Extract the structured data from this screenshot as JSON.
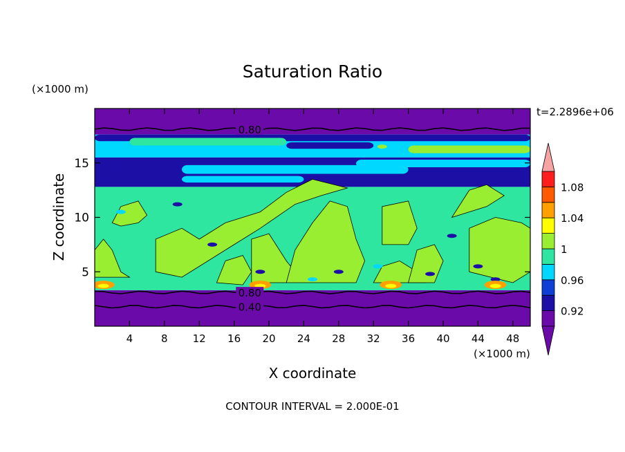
{
  "chart_data": {
    "type": "heatmap",
    "title": "Saturation Ratio",
    "xlabel": "X coordinate",
    "ylabel": "Z coordinate",
    "x_unit_label": "(×1000 m)",
    "y_unit_label": "(×1000 m)",
    "time_label": "t=2.2896e+06",
    "footer": "CONTOUR INTERVAL = 2.000E-01",
    "xlim": [
      0,
      50
    ],
    "ylim": [
      0,
      20
    ],
    "x_ticks": [
      4,
      8,
      12,
      16,
      20,
      24,
      28,
      32,
      36,
      40,
      44,
      48
    ],
    "y_ticks": [
      5,
      10,
      15
    ],
    "colorbar": {
      "levels": [
        0.9,
        0.92,
        0.94,
        0.96,
        0.98,
        1.0,
        1.02,
        1.04,
        1.06,
        1.08,
        1.1
      ],
      "tick_labels": [
        "0.92",
        "0.96",
        "1",
        "1.04",
        "1.08"
      ],
      "tick_values": [
        0.92,
        0.96,
        1.0,
        1.04,
        1.08
      ],
      "colors": [
        "#6a0aa8",
        "#1c0fa6",
        "#0f3fd6",
        "#00d8ff",
        "#2ee6a0",
        "#99ee32",
        "#ffff00",
        "#ffa000",
        "#ff5a00",
        "#ff1e1e"
      ],
      "under_color": "#6a0aa8",
      "over_color": "#f5a3a3"
    },
    "contour_lines": [
      {
        "label": "0.80",
        "z": 18.1
      },
      {
        "label": "0.80",
        "z": 3.1
      },
      {
        "label": "0.40",
        "z": 1.8
      }
    ],
    "layers": [
      {
        "z_range": [
          17.6,
          20
        ],
        "value": 0.8
      },
      {
        "z_range": [
          15.5,
          17.6
        ],
        "value": 0.96
      },
      {
        "z_range": [
          12.8,
          15.5
        ],
        "value": 0.92
      },
      {
        "z_range": [
          3.3,
          12.8
        ],
        "value": 0.99
      },
      {
        "z_range": [
          0,
          3.3
        ],
        "value": 0.6
      }
    ],
    "cloud_cells_value": 1.01,
    "warm_spot_x": [
      1,
      19,
      34,
      46
    ]
  }
}
